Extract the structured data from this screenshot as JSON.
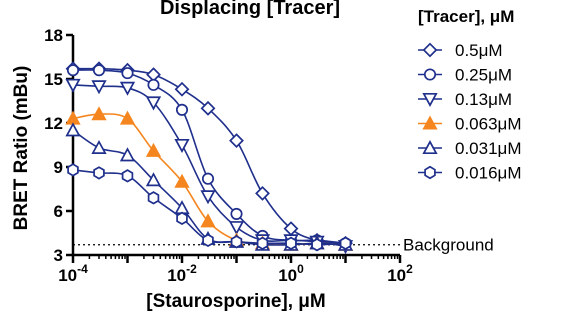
{
  "title": "Displacing [Tracer]",
  "colors": {
    "ink": "#1f2f8c",
    "accent": "#f5861f",
    "axis": "#000000"
  },
  "chart_data": {
    "type": "scatter",
    "title": "Displacing [Tracer]",
    "xlabel": "[Staurosporine], μM",
    "ylabel": "BRET Ratio (mBu)",
    "xscale": "log",
    "xlim": [
      0.0001,
      100
    ],
    "ylim": [
      3,
      18
    ],
    "x_ticks": [
      {
        "value": 0.0001,
        "base": "10",
        "exp": "-4"
      },
      {
        "value": 0.01,
        "base": "10",
        "exp": "-2"
      },
      {
        "value": 1,
        "base": "10",
        "exp": "0"
      },
      {
        "value": 100,
        "base": "10",
        "exp": "2"
      }
    ],
    "y_ticks": [
      3,
      6,
      9,
      12,
      15,
      18
    ],
    "background": {
      "y": 3.7,
      "label": "Background"
    },
    "legend_title": "[Tracer], μM",
    "legend_position": "right",
    "x": [
      0.0001,
      0.0003,
      0.001,
      0.003,
      0.01,
      0.03,
      0.1,
      0.3,
      1,
      3,
      10
    ],
    "series": [
      {
        "name": "0.5μM",
        "marker": "diamond",
        "color": "#1f2f8c",
        "values": [
          15.7,
          15.7,
          15.6,
          15.3,
          14.3,
          13.0,
          10.8,
          7.2,
          4.8,
          4.0,
          3.8
        ]
      },
      {
        "name": "0.25μM",
        "marker": "circle",
        "color": "#1f2f8c",
        "values": [
          15.6,
          15.6,
          15.4,
          14.6,
          12.9,
          8.2,
          5.8,
          4.3,
          4.0,
          4.0,
          3.8
        ]
      },
      {
        "name": "0.13μM",
        "marker": "triangle-down",
        "color": "#1f2f8c",
        "values": [
          14.6,
          14.5,
          14.4,
          13.4,
          10.5,
          7.0,
          4.9,
          4.0,
          4.0,
          3.9,
          3.6
        ]
      },
      {
        "name": "0.063μM",
        "marker": "triangle-up-filled",
        "color": "#f5861f",
        "values": [
          12.3,
          12.6,
          12.3,
          10.1,
          8.0,
          5.3,
          4.0,
          3.8,
          3.7,
          3.8,
          3.7
        ]
      },
      {
        "name": "0.031μM",
        "marker": "triangle-up",
        "color": "#1f2f8c",
        "values": [
          11.5,
          10.3,
          9.8,
          8.1,
          6.2,
          4.1,
          3.9,
          3.7,
          3.7,
          3.8,
          3.7
        ]
      },
      {
        "name": "0.016μM",
        "marker": "hexagon",
        "color": "#1f2f8c",
        "values": [
          8.8,
          8.6,
          8.4,
          6.9,
          5.5,
          4.0,
          3.9,
          3.8,
          3.8,
          3.7,
          3.8
        ]
      }
    ]
  }
}
